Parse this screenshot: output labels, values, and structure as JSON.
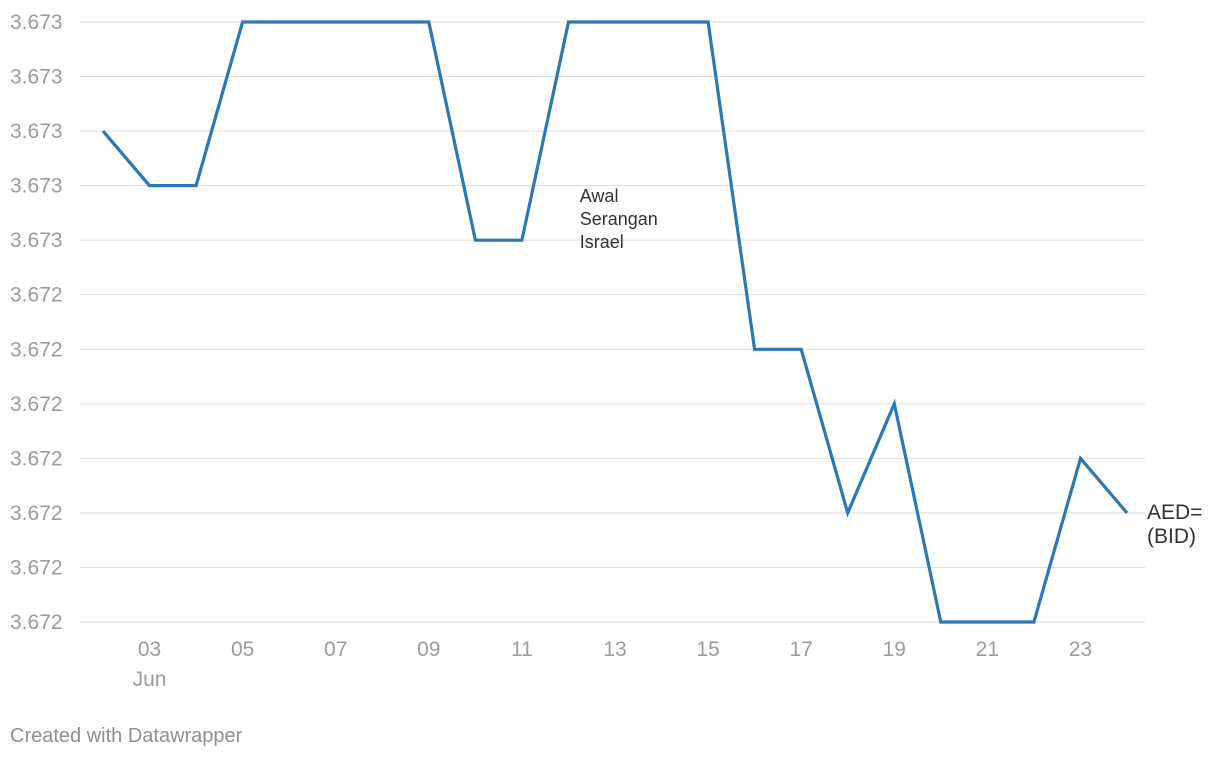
{
  "chart_data": {
    "type": "line",
    "x_ticks": [
      "03",
      "05",
      "07",
      "09",
      "11",
      "13",
      "15",
      "17",
      "19",
      "21",
      "23"
    ],
    "x_month_label": "Jun",
    "y_tick_labels": [
      "3.673",
      "3.673",
      "3.673",
      "3.673",
      "3.673",
      "3.672",
      "3.672",
      "3.672",
      "3.672",
      "3.672",
      "3.672",
      "3.672"
    ],
    "grid": true,
    "series": [
      {
        "name": "AED=\n(BID)",
        "color": "#2a78b4",
        "x": [
          2,
          3,
          4,
          5,
          6,
          7,
          8,
          9,
          10,
          11,
          12,
          13,
          14,
          15,
          16,
          17,
          18,
          19,
          20,
          21,
          22,
          23,
          24
        ],
        "values": [
          3.67302,
          3.67301,
          3.67301,
          3.67304,
          3.67304,
          3.67304,
          3.67304,
          3.67304,
          3.673,
          3.673,
          3.67304,
          3.67304,
          3.67304,
          3.67304,
          3.67298,
          3.67298,
          3.67295,
          3.67297,
          3.67293,
          3.67293,
          3.67293,
          3.67296,
          3.67295
        ]
      }
    ],
    "annotations": [
      {
        "text": "Awal\nSerangan\nIsrael",
        "x": 12.2
      }
    ]
  },
  "footer": {
    "credit": "Created with Datawrapper"
  }
}
